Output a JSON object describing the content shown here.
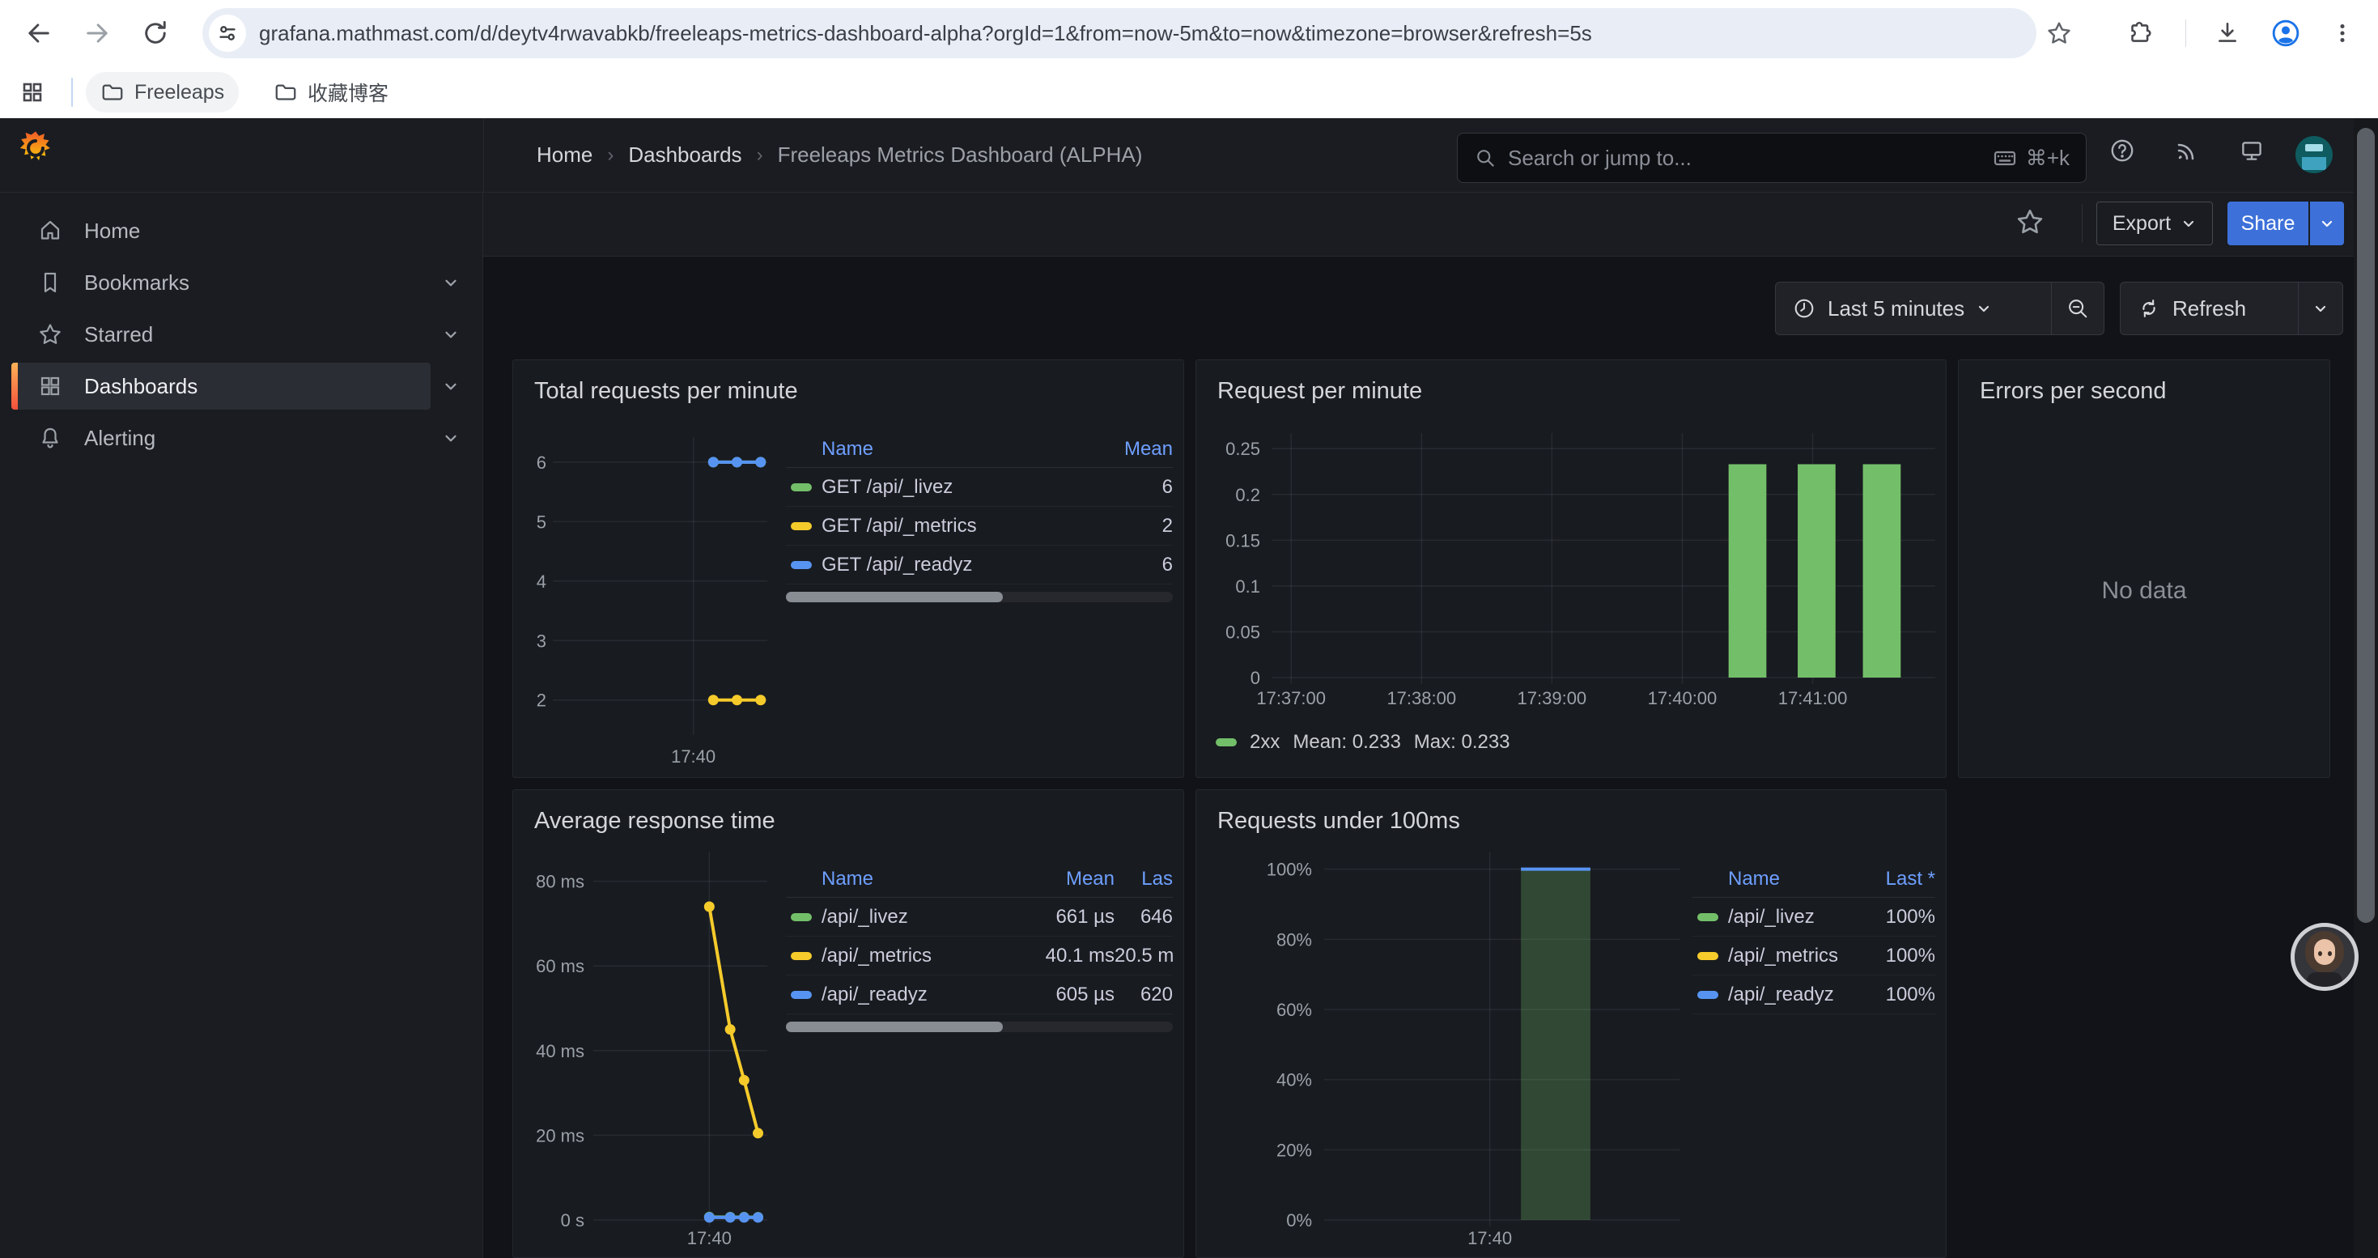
{
  "browser": {
    "url": "grafana.mathmast.com/d/deytv4rwavabkb/freeleaps-metrics-dashboard-alpha?orgId=1&from=now-5m&to=now&timezone=browser&refresh=5s",
    "bookmarks": [
      {
        "label": "Freeleaps"
      },
      {
        "label": "收藏博客"
      }
    ]
  },
  "header": {
    "brand": "Grafana",
    "breadcrumb": {
      "home": "Home",
      "section": "Dashboards",
      "current": "Freeleaps Metrics Dashboard (ALPHA)"
    },
    "search": {
      "placeholder": "Search or jump to...",
      "shortcut": "⌘+k"
    },
    "actions": {
      "export_label": "Export",
      "share_label": "Share"
    }
  },
  "timebar": {
    "range_label": "Last 5 minutes",
    "refresh_label": "Refresh"
  },
  "sidebar": {
    "items": [
      {
        "label": "Home"
      },
      {
        "label": "Bookmarks"
      },
      {
        "label": "Starred"
      },
      {
        "label": "Dashboards"
      },
      {
        "label": "Alerting"
      }
    ],
    "active": "Dashboards"
  },
  "colors": {
    "green": "#73bf69",
    "yellow": "#f5cb2b",
    "blue": "#5794f2",
    "green_faded": "rgba(115,191,105,0.28)",
    "accent": "#3d71d9",
    "link": "#6e9fff",
    "brand_orange": "#f05a28"
  },
  "chart_data": [
    {
      "panel": "Total requests per minute",
      "type": "line",
      "x_unit": "minutes after 17:00",
      "xlim": [
        38.1,
        41.0
      ],
      "ylim": [
        1.52,
        6.42
      ],
      "x_ticks": [
        {
          "v": 40,
          "label": "17:40"
        }
      ],
      "y_ticks": [
        {
          "v": 2,
          "label": "2"
        },
        {
          "v": 3,
          "label": "3"
        },
        {
          "v": 4,
          "label": "4"
        },
        {
          "v": 5,
          "label": "5"
        },
        {
          "v": 6,
          "label": "6"
        }
      ],
      "series": [
        {
          "name": "GET /api/_livez",
          "color": "green",
          "x": [
            40.27,
            40.59,
            40.91
          ],
          "y": [
            6,
            6,
            6
          ]
        },
        {
          "name": "GET /api/_metrics",
          "color": "yellow",
          "x": [
            40.27,
            40.59,
            40.91
          ],
          "y": [
            2,
            2,
            2
          ]
        },
        {
          "name": "GET /api/_readyz",
          "color": "blue",
          "x": [
            40.27,
            40.59,
            40.91
          ],
          "y": [
            6,
            6,
            6
          ]
        }
      ],
      "legend": {
        "columns": {
          "name": "Name",
          "mean": "Mean"
        },
        "rows": [
          {
            "color": "green",
            "name": "GET /api/_livez",
            "mean": "6"
          },
          {
            "color": "yellow",
            "name": "GET /api/_metrics",
            "mean": "2"
          },
          {
            "color": "blue",
            "name": "GET /api/_readyz",
            "mean": "6"
          }
        ]
      }
    },
    {
      "panel": "Request per minute",
      "type": "bar",
      "x_unit": "minutes after 17:00",
      "xlim": [
        36.85,
        41.94
      ],
      "ylim": [
        0,
        0.267
      ],
      "x_ticks": [
        {
          "v": 37,
          "label": "17:37:00"
        },
        {
          "v": 38,
          "label": "17:38:00"
        },
        {
          "v": 39,
          "label": "17:39:00"
        },
        {
          "v": 40,
          "label": "17:40:00"
        },
        {
          "v": 41,
          "label": "17:41:00"
        }
      ],
      "y_ticks": [
        {
          "v": 0,
          "label": "0"
        },
        {
          "v": 0.05,
          "label": "0.05"
        },
        {
          "v": 0.1,
          "label": "0.1"
        },
        {
          "v": 0.15,
          "label": "0.15"
        },
        {
          "v": 0.2,
          "label": "0.2"
        },
        {
          "v": 0.25,
          "label": "0.25"
        }
      ],
      "bars": {
        "name": "2xx",
        "color": "green",
        "x": [
          40.5,
          41.03,
          41.53
        ],
        "values": [
          0.233,
          0.233,
          0.233
        ],
        "width": 0.29
      },
      "legend_text": {
        "name": "2xx",
        "mean": "Mean: 0.233",
        "max": "Max: 0.233"
      }
    },
    {
      "panel": "Errors per second",
      "type": "none",
      "message": "No data"
    },
    {
      "panel": "Average response time",
      "type": "line",
      "x_unit": "minutes after 17:00",
      "xlim": [
        39.0,
        40.5
      ],
      "ylim": [
        0,
        87
      ],
      "x_ticks": [
        {
          "v": 40,
          "label": "17:40"
        }
      ],
      "y_ticks": [
        {
          "v": 0,
          "label": "0 s"
        },
        {
          "v": 20,
          "label": "20 ms"
        },
        {
          "v": 40,
          "label": "40 ms"
        },
        {
          "v": 60,
          "label": "60 ms"
        },
        {
          "v": 80,
          "label": "80 ms"
        }
      ],
      "series": [
        {
          "name": "/api/_livez",
          "color": "green",
          "x": [
            40.0,
            40.18,
            40.3,
            40.42
          ],
          "y": [
            0.7,
            0.68,
            0.66,
            0.65
          ]
        },
        {
          "name": "/api/_metrics",
          "color": "yellow",
          "x": [
            40.0,
            40.18,
            40.3,
            40.42
          ],
          "y": [
            74,
            45,
            33,
            20.5
          ]
        },
        {
          "name": "/api/_readyz",
          "color": "blue",
          "x": [
            40.0,
            40.18,
            40.3,
            40.42
          ],
          "y": [
            0.6,
            0.6,
            0.6,
            0.6
          ]
        }
      ],
      "legend": {
        "columns": {
          "name": "Name",
          "mean": "Mean",
          "last": "Las"
        },
        "rows": [
          {
            "color": "green",
            "name": "/api/_livez",
            "mean": "661 µs",
            "last": "646"
          },
          {
            "color": "yellow",
            "name": "/api/_metrics",
            "mean": "40.1 ms",
            "last": "20.5 m"
          },
          {
            "color": "blue",
            "name": "/api/_readyz",
            "mean": "605 µs",
            "last": "620"
          }
        ]
      }
    },
    {
      "panel": "Requests under 100ms",
      "type": "bar",
      "x_unit": "minutes after 17:00",
      "xlim": [
        39.07,
        41.07
      ],
      "ylim": [
        0,
        105
      ],
      "x_ticks": [
        {
          "v": 40,
          "label": "17:40"
        }
      ],
      "y_ticks": [
        {
          "v": 0,
          "label": "0%"
        },
        {
          "v": 20,
          "label": "20%"
        },
        {
          "v": 40,
          "label": "40%"
        },
        {
          "v": 60,
          "label": "60%"
        },
        {
          "v": 80,
          "label": "80%"
        },
        {
          "v": 100,
          "label": "100%"
        }
      ],
      "bars": {
        "color": "green_faded",
        "x": [
          40.37
        ],
        "values": [
          100
        ],
        "width": 0.39,
        "cap_color": "blue"
      },
      "legend": {
        "columns": {
          "name": "Name",
          "last": "Last *"
        },
        "rows": [
          {
            "color": "green",
            "name": "/api/_livez",
            "last": "100%"
          },
          {
            "color": "yellow",
            "name": "/api/_metrics",
            "last": "100%"
          },
          {
            "color": "blue",
            "name": "/api/_readyz",
            "last": "100%"
          }
        ]
      }
    }
  ]
}
